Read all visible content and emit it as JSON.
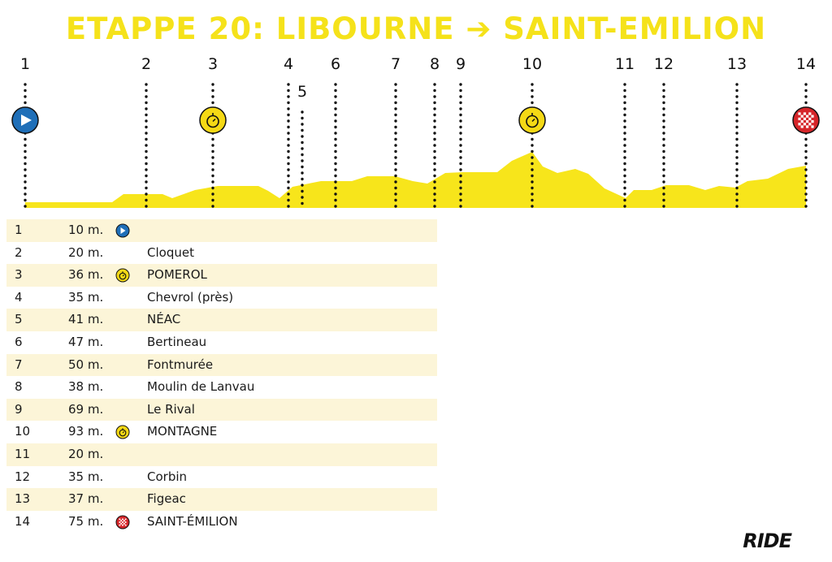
{
  "title": "ETAPPE 20: LIBOURNE ➔ SAINT-EMILION",
  "brand": "RIDE",
  "colors": {
    "profile_fill": "#f7e51b",
    "title": "#f5e21a",
    "start_icon": "#1f6fb8",
    "sprint_icon": "#f5d915",
    "finish_icon": "#d6262a",
    "row_shade": "#fcf5d8"
  },
  "chart_data": {
    "type": "area",
    "title": "ETAPPE 20: LIBOURNE ➔ SAINT-EMILION",
    "xlabel": "",
    "ylabel": "",
    "grid": false,
    "points": [
      {
        "label": "1",
        "altitude": 10,
        "icon": "start-icon"
      },
      {
        "label": "2",
        "altitude": 20
      },
      {
        "label": "3",
        "altitude": 36,
        "icon": "stopwatch-icon"
      },
      {
        "label": "4",
        "altitude": 35
      },
      {
        "label": "5",
        "altitude": 41
      },
      {
        "label": "6",
        "altitude": 47
      },
      {
        "label": "7",
        "altitude": 50
      },
      {
        "label": "8",
        "altitude": 38
      },
      {
        "label": "9",
        "altitude": 69
      },
      {
        "label": "10",
        "altitude": 93,
        "icon": "stopwatch-icon"
      },
      {
        "label": "11",
        "altitude": 20
      },
      {
        "label": "12",
        "altitude": 35
      },
      {
        "label": "13",
        "altitude": 37
      },
      {
        "label": "14",
        "altitude": 75,
        "icon": "finish-flag-icon"
      }
    ]
  },
  "table": {
    "rows": [
      {
        "num": "1",
        "alt": "10 m.",
        "icon": "start-icon",
        "place": ""
      },
      {
        "num": "2",
        "alt": "20 m.",
        "icon": "",
        "place": "Cloquet"
      },
      {
        "num": "3",
        "alt": "36 m.",
        "icon": "stopwatch-icon",
        "place": "POMEROL"
      },
      {
        "num": "4",
        "alt": "35 m.",
        "icon": "",
        "place": "Chevrol (près)"
      },
      {
        "num": "5",
        "alt": "41 m.",
        "icon": "",
        "place": "NÉAC"
      },
      {
        "num": "6",
        "alt": "47 m.",
        "icon": "",
        "place": "Bertineau"
      },
      {
        "num": "7",
        "alt": "50 m.",
        "icon": "",
        "place": "Fontmurée"
      },
      {
        "num": "8",
        "alt": "38 m.",
        "icon": "",
        "place": "Moulin de Lanvau"
      },
      {
        "num": "9",
        "alt": "69 m.",
        "icon": "",
        "place": "Le Rival"
      },
      {
        "num": "10",
        "alt": "93 m.",
        "icon": "stopwatch-icon",
        "place": "MONTAGNE"
      },
      {
        "num": "11",
        "alt": "20 m.",
        "icon": "",
        "place": ""
      },
      {
        "num": "12",
        "alt": "35 m.",
        "icon": "",
        "place": "Corbin"
      },
      {
        "num": "13",
        "alt": "37 m.",
        "icon": "",
        "place": "Figeac"
      },
      {
        "num": "14",
        "alt": "75 m.",
        "icon": "finish-flag-icon",
        "place": "SAINT-ÉMILION"
      }
    ]
  }
}
